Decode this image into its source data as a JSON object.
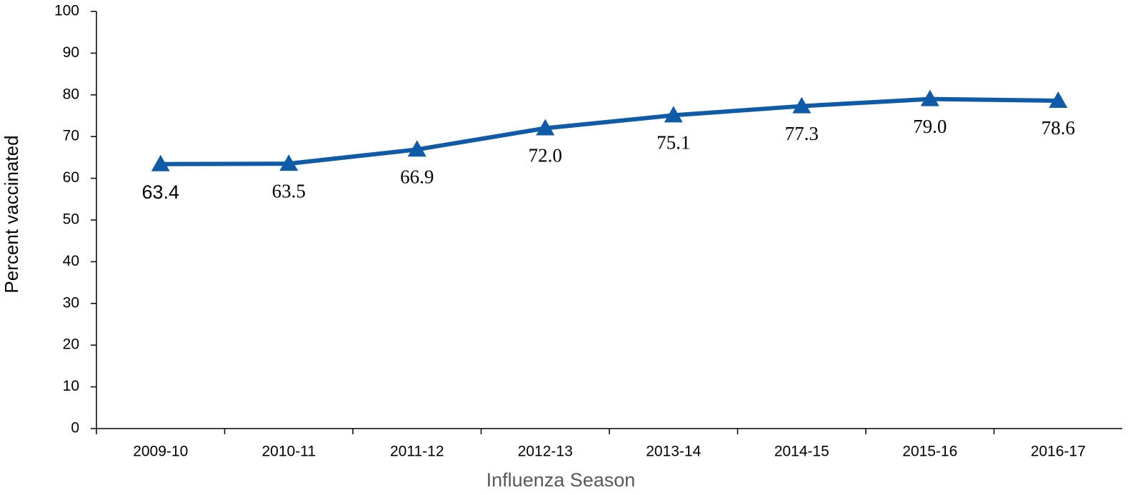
{
  "chart_data": {
    "type": "line",
    "xlabel": "Influenza Season",
    "ylabel": "Percent vaccinated",
    "categories": [
      "2009-10",
      "2010-11",
      "2011-12",
      "2012-13",
      "2013-14",
      "2014-15",
      "2015-16",
      "2016-17"
    ],
    "values": [
      63.4,
      63.5,
      66.9,
      72,
      75.1,
      77.3,
      79,
      78.6
    ],
    "value_labels": [
      "63.4",
      "63.5",
      "66.9",
      "72.0",
      "75.1",
      "77.3",
      "79.0",
      "78.6"
    ],
    "color": "#0f5ba7",
    "ylim": [
      0,
      100
    ],
    "yticks": [
      0,
      10,
      20,
      30,
      40,
      50,
      60,
      70,
      80,
      90,
      100
    ]
  }
}
